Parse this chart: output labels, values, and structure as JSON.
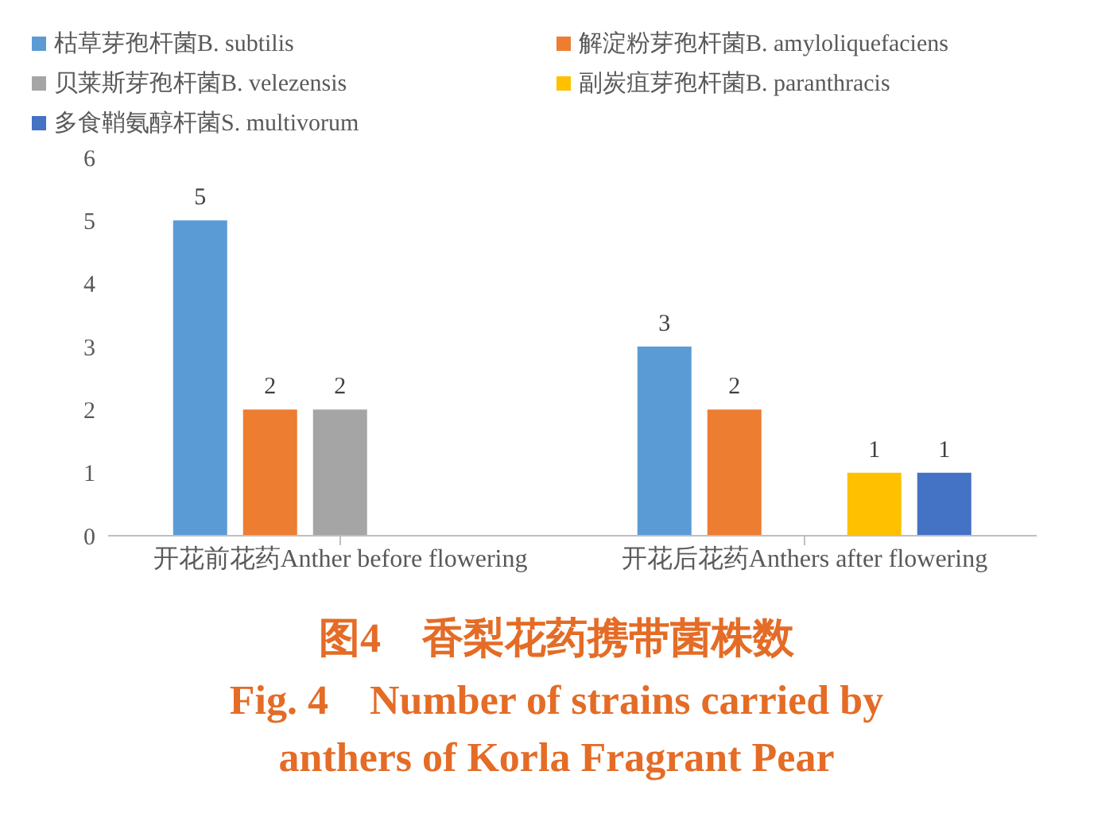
{
  "chart_data": {
    "type": "bar",
    "title": "图4　香梨花药携带菌株数",
    "subtitle": "Fig. 4　Number of strains carried by anthers of Korla Fragrant Pear",
    "categories": [
      "开花前花药Anther before flowering",
      "开花后花药Anthers after flowering"
    ],
    "series": [
      {
        "name": "枯草芽孢杆菌B. subtilis",
        "color": "#5b9bd5",
        "values": [
          5,
          3
        ]
      },
      {
        "name": "解淀粉芽孢杆菌B. amyloliquefaciens",
        "color": "#ed7d31",
        "values": [
          2,
          2
        ]
      },
      {
        "name": "贝莱斯芽孢杆菌B. velezensis",
        "color": "#a5a5a5",
        "values": [
          2,
          null
        ]
      },
      {
        "name": "副炭疽芽孢杆菌B. paranthracis",
        "color": "#ffc000",
        "values": [
          null,
          1
        ]
      },
      {
        "name": "多食鞘氨醇杆菌S. multivorum",
        "color": "#4472c4",
        "values": [
          null,
          1
        ]
      }
    ],
    "ylim": [
      0,
      6
    ],
    "yticks": [
      0,
      1,
      2,
      3,
      4,
      5,
      6
    ],
    "grid": false,
    "legend": "top left",
    "data_labels": true
  }
}
